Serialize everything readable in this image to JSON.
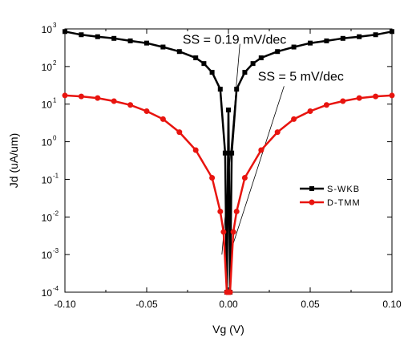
{
  "chart_data": {
    "type": "line",
    "title": "",
    "xlabel": "Vg (V)",
    "ylabel": "Jd (uA/um)",
    "xlim": [
      -0.1,
      0.1
    ],
    "ylim": [
      0.0001,
      1000
    ],
    "yscale": "log",
    "grid": false,
    "legend_position": "right",
    "x_ticks": [
      "-0.10",
      "-0.05",
      "0.00",
      "0.05",
      "0.10"
    ],
    "x_tick_values": [
      -0.1,
      -0.05,
      0,
      0.05,
      0.1
    ],
    "y_ticks": [
      {
        "value": 0.0001,
        "base": "10",
        "exp": "-4"
      },
      {
        "value": 0.001,
        "base": "10",
        "exp": "-3"
      },
      {
        "value": 0.01,
        "base": "10",
        "exp": "-2"
      },
      {
        "value": 0.1,
        "base": "10",
        "exp": "-1"
      },
      {
        "value": 1,
        "base": "10",
        "exp": "0"
      },
      {
        "value": 10,
        "base": "10",
        "exp": "1"
      },
      {
        "value": 100,
        "base": "10",
        "exp": "2"
      },
      {
        "value": 1000,
        "base": "10",
        "exp": "3"
      }
    ],
    "series": [
      {
        "name": "S-WKB",
        "color": "#000000",
        "marker": "square",
        "x": [
          -0.1,
          -0.09,
          -0.08,
          -0.07,
          -0.06,
          -0.05,
          -0.04,
          -0.03,
          -0.02,
          -0.015,
          -0.01,
          -0.005,
          -0.002,
          -0.001,
          0,
          0.001,
          0.002,
          0.005,
          0.01,
          0.015,
          0.02,
          0.03,
          0.04,
          0.05,
          0.06,
          0.07,
          0.08,
          0.09,
          0.1
        ],
        "y": [
          850,
          700,
          620,
          560,
          480,
          420,
          330,
          250,
          170,
          120,
          70,
          25,
          0.5,
          0.0001,
          7,
          0.0001,
          0.5,
          25,
          70,
          120,
          170,
          250,
          330,
          420,
          480,
          560,
          620,
          700,
          850
        ]
      },
      {
        "name": "D-TMM",
        "color": "#e8140f",
        "marker": "circle",
        "x": [
          -0.1,
          -0.09,
          -0.08,
          -0.07,
          -0.06,
          -0.05,
          -0.04,
          -0.03,
          -0.02,
          -0.01,
          -0.005,
          -0.003,
          -0.001,
          0,
          0.001,
          0.003,
          0.005,
          0.01,
          0.02,
          0.03,
          0.04,
          0.05,
          0.06,
          0.07,
          0.08,
          0.09,
          0.1
        ],
        "y": [
          17,
          16,
          14.5,
          12,
          9.5,
          6.5,
          4,
          1.8,
          0.6,
          0.11,
          0.014,
          0.004,
          0.0001,
          0.0001,
          0.0001,
          0.004,
          0.014,
          0.11,
          0.6,
          1.8,
          4,
          6.5,
          9.5,
          12,
          14.5,
          16,
          17
        ]
      }
    ],
    "annotations": [
      {
        "text": "SS = 0.19 mV/dec",
        "x": -0.028,
        "y": 400
      },
      {
        "text": "SS = 5 mV/dec",
        "x": 0.018,
        "y": 42
      }
    ]
  }
}
